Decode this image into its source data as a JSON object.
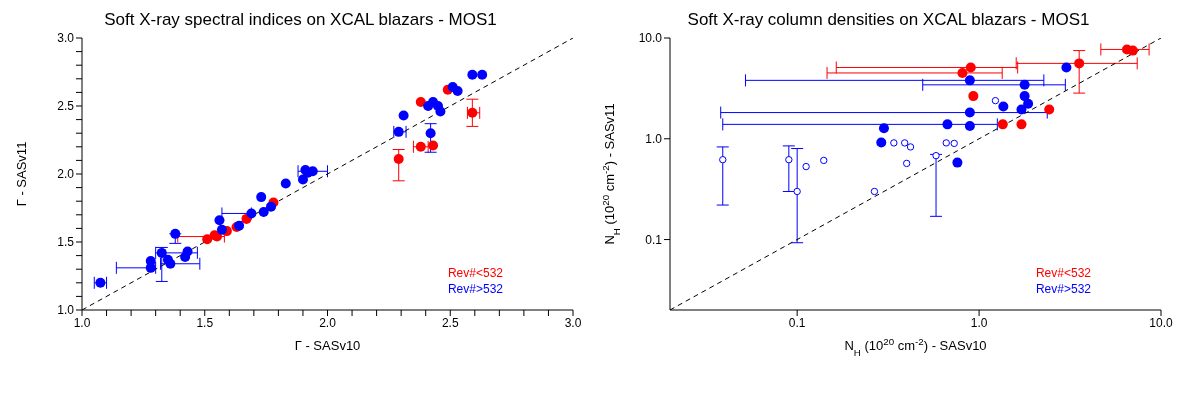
{
  "chart_data": [
    {
      "type": "scatter",
      "title": "Soft X-ray spectral indices on XCAL blazars - MOS1",
      "xlabel": "Γ - SASv10",
      "ylabel": "Γ - SASv11",
      "legend": "bottom right",
      "marker": "circle",
      "xlim": [
        1,
        3
      ],
      "ylim": [
        1,
        3
      ],
      "xticks": [
        {
          "value": 1,
          "label": "1.0"
        },
        {
          "value": 1.1,
          "label": null
        },
        {
          "value": 1.2,
          "label": null
        },
        {
          "value": 1.3,
          "label": null
        },
        {
          "value": 1.4,
          "label": null
        },
        {
          "value": 1.5,
          "label": "1.5"
        },
        {
          "value": 1.6,
          "label": null
        },
        {
          "value": 1.7,
          "label": null
        },
        {
          "value": 1.8,
          "label": null
        },
        {
          "value": 1.9,
          "label": null
        },
        {
          "value": 2,
          "label": "2.0"
        },
        {
          "value": 2.1,
          "label": null
        },
        {
          "value": 2.2,
          "label": null
        },
        {
          "value": 2.3,
          "label": null
        },
        {
          "value": 2.4,
          "label": null
        },
        {
          "value": 2.5,
          "label": "2.5"
        },
        {
          "value": 2.6,
          "label": null
        },
        {
          "value": 2.7,
          "label": null
        },
        {
          "value": 2.8,
          "label": null
        },
        {
          "value": 2.9,
          "label": null
        },
        {
          "value": 3,
          "label": "3.0"
        }
      ],
      "yticks": [
        {
          "value": 1,
          "label": "1.0"
        },
        {
          "value": 1.1,
          "label": null
        },
        {
          "value": 1.2,
          "label": null
        },
        {
          "value": 1.3,
          "label": null
        },
        {
          "value": 1.4,
          "label": null
        },
        {
          "value": 1.5,
          "label": "1.5"
        },
        {
          "value": 1.6,
          "label": null
        },
        {
          "value": 1.7,
          "label": null
        },
        {
          "value": 1.8,
          "label": null
        },
        {
          "value": 1.9,
          "label": null
        },
        {
          "value": 2,
          "label": "2.0"
        },
        {
          "value": 2.1,
          "label": null
        },
        {
          "value": 2.2,
          "label": null
        },
        {
          "value": 2.3,
          "label": null
        },
        {
          "value": 2.4,
          "label": null
        },
        {
          "value": 2.5,
          "label": "2.5"
        },
        {
          "value": 2.6,
          "label": null
        },
        {
          "value": 2.7,
          "label": null
        },
        {
          "value": 2.8,
          "label": null
        },
        {
          "value": 2.9,
          "label": null
        },
        {
          "value": 3,
          "label": "3.0"
        }
      ],
      "series": [
        {
          "type": "line",
          "color": "#000000",
          "line_style": "dashed",
          "marker": "none",
          "x": [
            1,
            3
          ],
          "values": [
            1,
            3
          ]
        },
        {
          "name": "Rev#<532",
          "color": "#ff0000",
          "x": [
            1.51,
            1.54,
            1.55,
            1.59,
            1.63,
            1.67,
            1.78,
            2.29,
            2.38,
            2.43,
            2.38,
            2.49,
            2.59
          ],
          "values": [
            1.52,
            1.55,
            1.54,
            1.58,
            1.61,
            1.67,
            1.79,
            2.11,
            2.2,
            2.21,
            2.53,
            2.62,
            2.45
          ],
          "errors": [
            null,
            null,
            null,
            null,
            null,
            null,
            null,
            [
              1.95,
              2.18
            ],
            null,
            null,
            null,
            null,
            [
              2.35,
              2.55
            ]
          ],
          "xerrors": [
            null,
            null,
            [
              1.39,
              1.58
            ],
            null,
            null,
            null,
            null,
            null,
            [
              2.35,
              2.41
            ],
            null,
            null,
            null,
            [
              2.57,
              2.62
            ]
          ]
        },
        {
          "name": "Rev#>532",
          "color": "#0000ff",
          "x": [
            1.075,
            1.28,
            1.28,
            1.325,
            1.35,
            1.36,
            1.42,
            1.43,
            1.38,
            1.56,
            1.57,
            1.64,
            1.69,
            1.74,
            1.77,
            1.73,
            1.83,
            1.9,
            1.91,
            1.94,
            1.92,
            2.29,
            2.31,
            2.41,
            2.43,
            2.45,
            2.46,
            2.42,
            2.51,
            2.53,
            2.59,
            2.63
          ],
          "values": [
            1.2,
            1.31,
            1.36,
            1.42,
            1.37,
            1.34,
            1.39,
            1.43,
            1.56,
            1.66,
            1.59,
            1.62,
            1.71,
            1.72,
            1.76,
            1.83,
            1.93,
            1.96,
            2.03,
            2.02,
            2.01,
            2.31,
            2.43,
            2.5,
            2.53,
            2.5,
            2.46,
            2.3,
            2.64,
            2.61,
            2.73,
            2.73
          ],
          "errors": [
            null,
            null,
            null,
            [
              1.21,
              1.46
            ],
            null,
            null,
            null,
            null,
            [
              1.49,
              1.56
            ],
            null,
            null,
            null,
            null,
            null,
            null,
            null,
            null,
            null,
            null,
            null,
            null,
            null,
            null,
            null,
            null,
            null,
            null,
            [
              2.16,
              2.37
            ],
            null,
            null,
            null,
            null
          ],
          "xerrors": [
            [
              1.05,
              1.1
            ],
            [
              1.14,
              1.3
            ],
            null,
            [
              1.3,
              1.47
            ],
            null,
            [
              1.32,
              1.48
            ],
            null,
            null,
            null,
            null,
            null,
            null,
            [
              1.57,
              1.69
            ],
            null,
            null,
            null,
            null,
            null,
            null,
            [
              1.88,
              2
            ],
            null,
            [
              2.27,
              2.32
            ],
            null,
            null,
            null,
            null,
            null,
            null,
            null,
            null,
            null,
            null
          ]
        }
      ]
    },
    {
      "type": "scatter",
      "title": "Soft X-ray column densities on XCAL blazars - MOS1",
      "xlabel": "N$_{H}$ (10$^{20}$ cm$^{-2}$) - SASv10",
      "ylabel": "N$_{H}$ (10$^{20}$ cm$^{-2}$) - SASv11",
      "legend": "bottom right",
      "marker": "circle",
      "log": "xy",
      "xlim": [
        0.02,
        10
      ],
      "ylim": [
        0.02,
        10
      ],
      "xticks": [
        {
          "value": 0.1,
          "label": "0.1"
        },
        {
          "value": 1,
          "label": "1.0"
        },
        {
          "value": 10,
          "label": "10.0"
        }
      ],
      "yticks": [
        {
          "value": 0.1,
          "label": "0.1"
        },
        {
          "value": 1,
          "label": "1.0"
        },
        {
          "value": 10,
          "label": "10.0"
        }
      ],
      "series": [
        {
          "type": "line",
          "color": "#000000",
          "line_style": "dashed",
          "marker": "none",
          "x": [
            0.02,
            10
          ],
          "values": [
            0.02,
            10
          ]
        },
        {
          "name": "Rev#<532",
          "color": "#ff0000",
          "x": [
            6.5,
            7,
            3.55,
            0.9,
            0.81,
            0.93,
            2.43,
            1.35,
            1.71
          ],
          "values": [
            7.7,
            7.5,
            5.6,
            5.1,
            4.5,
            2.65,
            1.95,
            1.39,
            1.39
          ],
          "errors": [
            null,
            null,
            [
              2.84,
              7.5
            ],
            null,
            null,
            null,
            null,
            null,
            null
          ],
          "xerrors": [
            [
              4.67,
              8.6
            ],
            null,
            [
              1.6,
              7.4
            ],
            [
              0.164,
              1.63
            ],
            [
              0.146,
              1.34
            ],
            null,
            null,
            null,
            null
          ]
        },
        {
          "name": "Rev#>532",
          "color": "#0000ff",
          "x": [
            3.02,
            0.89,
            1.78,
            1.78,
            1.86,
            1.36,
            1.71,
            0.89,
            0.89,
            0.67,
            0.3,
            0.29,
            0.76
          ],
          "values": [
            5.1,
            3.8,
            3.43,
            2.65,
            2.23,
            2.09,
            1.95,
            1.82,
            1.34,
            1.39,
            1.27,
            0.92,
            0.58
          ],
          "xerrors": [
            null,
            [
              0.052,
              2.27
            ],
            [
              0.49,
              2.98
            ],
            null,
            null,
            null,
            null,
            [
              0.038,
              2.37
            ],
            null,
            [
              0.039,
              1.26
            ],
            null,
            null,
            null
          ]
        },
        {
          "color": "#0000ff",
          "x": [
            0.039,
            0.09,
            0.112,
            0.14,
            0.1,
            0.266,
            0.34,
            0.39,
            0.42,
            0.4,
            0.58,
            0.66,
            0.73,
            1.23
          ],
          "values": [
            0.62,
            0.62,
            0.53,
            0.61,
            0.3,
            0.3,
            0.91,
            0.91,
            0.83,
            0.57,
            0.68,
            0.91,
            0.9,
            2.39
          ],
          "errors": [
            [
              0.22,
              0.83
            ],
            [
              0.3,
              0.85
            ],
            null,
            null,
            [
              0.093,
              0.8
            ],
            null,
            null,
            null,
            null,
            null,
            [
              0.17,
              0.7
            ],
            null,
            null,
            null
          ]
        }
      ]
    }
  ]
}
